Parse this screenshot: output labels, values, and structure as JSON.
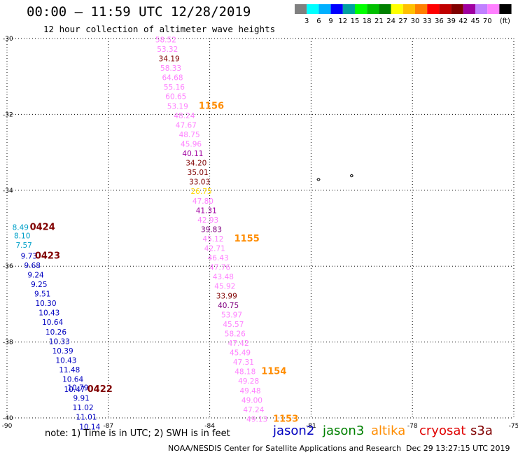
{
  "header": {
    "title": "00:00 – 11:59 UTC 12/28/2019",
    "subtitle": "12 hour collection of altimeter wave heights"
  },
  "colorbar": {
    "colors": [
      "#808080",
      "#00ffff",
      "#00b0ff",
      "#0000ff",
      "#00a0a0",
      "#00ff00",
      "#00c000",
      "#008000",
      "#ffff00",
      "#ffc000",
      "#ff8000",
      "#ff0000",
      "#c00000",
      "#800000",
      "#a000a0",
      "#c080ff",
      "#ff80ff",
      "#000000"
    ],
    "labels": [
      "3",
      "6",
      "9",
      "12",
      "15",
      "18",
      "21",
      "24",
      "27",
      "30",
      "33",
      "36",
      "39",
      "42",
      "45",
      "70"
    ],
    "unit": "(ft)"
  },
  "axes": {
    "lat_min": -40,
    "lat_max": -30,
    "lon_min": -90,
    "lon_max": -75,
    "lat_ticks": [
      {
        "value": -30,
        "label": "-30"
      },
      {
        "value": -32,
        "label": "-32"
      },
      {
        "value": -34,
        "label": "-34"
      },
      {
        "value": -36,
        "label": "-36"
      },
      {
        "value": -38,
        "label": "-38"
      },
      {
        "value": -40,
        "label": "-40"
      }
    ],
    "lon_ticks": [
      {
        "value": -90,
        "label": "-90"
      },
      {
        "value": -87,
        "label": "-87"
      },
      {
        "value": -84,
        "label": "-84"
      },
      {
        "value": -81,
        "label": "-81"
      },
      {
        "value": -78,
        "label": "-78"
      },
      {
        "value": -75,
        "label": "-75"
      }
    ]
  },
  "tracks": [
    {
      "satellite": "jason2",
      "points": [
        {
          "lat": -35.05,
          "lon": -89.6,
          "value": "8.49",
          "color": "#00a0c8"
        },
        {
          "lat": -35.27,
          "lon": -89.55,
          "value": "8.10",
          "color": "#00a0c8"
        },
        {
          "lat": -35.52,
          "lon": -89.5,
          "value": "7.57",
          "color": "#00a0c8"
        },
        {
          "lat": -35.8,
          "lon": -89.35,
          "value": "9.73",
          "color": "#0000c0"
        },
        {
          "lat": -36.05,
          "lon": -89.25,
          "value": "9.68",
          "color": "#0000c0"
        },
        {
          "lat": -36.3,
          "lon": -89.15,
          "value": "9.24",
          "color": "#0000c0"
        },
        {
          "lat": -36.55,
          "lon": -89.05,
          "value": "9.25",
          "color": "#0000c0"
        },
        {
          "lat": -36.8,
          "lon": -88.95,
          "value": "9.51",
          "color": "#0000c0"
        },
        {
          "lat": -37.05,
          "lon": -88.85,
          "value": "10.30",
          "color": "#0000c0"
        },
        {
          "lat": -37.3,
          "lon": -88.75,
          "value": "10.43",
          "color": "#0000c0"
        },
        {
          "lat": -37.55,
          "lon": -88.65,
          "value": "10.64",
          "color": "#0000c0"
        },
        {
          "lat": -37.8,
          "lon": -88.55,
          "value": "10.26",
          "color": "#0000c0"
        },
        {
          "lat": -38.05,
          "lon": -88.45,
          "value": "10.33",
          "color": "#0000c0"
        },
        {
          "lat": -38.3,
          "lon": -88.35,
          "value": "10.39",
          "color": "#0000c0"
        },
        {
          "lat": -38.55,
          "lon": -88.25,
          "value": "10.43",
          "color": "#0000c0"
        },
        {
          "lat": -38.8,
          "lon": -88.15,
          "value": "11.48",
          "color": "#0000c0"
        },
        {
          "lat": -39.05,
          "lon": -88.05,
          "value": "10.64",
          "color": "#0000c0"
        },
        {
          "lat": -39.27,
          "lon": -87.9,
          "value": "10.79",
          "color": "#0000c0"
        },
        {
          "lat": -39.32,
          "lon": -88.0,
          "value": "10.47",
          "color": "#0000c0"
        },
        {
          "lat": -39.55,
          "lon": -87.8,
          "value": "9.91",
          "color": "#0000c0"
        },
        {
          "lat": -39.8,
          "lon": -87.75,
          "value": "11.02",
          "color": "#0000c0"
        },
        {
          "lat": -40.05,
          "lon": -87.65,
          "value": "11.01",
          "color": "#0000c0"
        },
        {
          "lat": -40.3,
          "lon": -87.55,
          "value": "10.14",
          "color": "#0000c0"
        }
      ],
      "times": [
        {
          "lat": -35.05,
          "lon": -88.95,
          "label": "0424",
          "color": "#800000"
        },
        {
          "lat": -35.8,
          "lon": -88.8,
          "label": "0423",
          "color": "#800000"
        },
        {
          "lat": -39.32,
          "lon": -87.25,
          "label": "0422",
          "color": "#800000"
        }
      ]
    },
    {
      "satellite": "altika",
      "points": [
        {
          "lat": -30.1,
          "lon": -85.3,
          "value": "58.52",
          "color": "#ff80ff"
        },
        {
          "lat": -30.35,
          "lon": -85.25,
          "value": "53.32",
          "color": "#ff80ff"
        },
        {
          "lat": -30.6,
          "lon": -85.2,
          "value": "34.19",
          "color": "#800000"
        },
        {
          "lat": -30.85,
          "lon": -85.15,
          "value": "58.33",
          "color": "#ff80ff"
        },
        {
          "lat": -31.1,
          "lon": -85.1,
          "value": "64.68",
          "color": "#ff80ff"
        },
        {
          "lat": -31.35,
          "lon": -85.05,
          "value": "55.16",
          "color": "#ff80ff"
        },
        {
          "lat": -31.6,
          "lon": -85.0,
          "value": "60.65",
          "color": "#ff80ff"
        },
        {
          "lat": -31.85,
          "lon": -84.95,
          "value": "53.19",
          "color": "#ff80ff"
        },
        {
          "lat": -32.1,
          "lon": -84.75,
          "value": "48.24",
          "color": "#ff80ff"
        },
        {
          "lat": -32.35,
          "lon": -84.7,
          "value": "47.67",
          "color": "#ff80ff"
        },
        {
          "lat": -32.6,
          "lon": -84.6,
          "value": "48.75",
          "color": "#ff80ff"
        },
        {
          "lat": -32.85,
          "lon": -84.55,
          "value": "45.96",
          "color": "#ff80ff"
        },
        {
          "lat": -33.1,
          "lon": -84.5,
          "value": "40.11",
          "color": "#a000a0"
        },
        {
          "lat": -33.35,
          "lon": -84.4,
          "value": "34.20",
          "color": "#800000"
        },
        {
          "lat": -33.6,
          "lon": -84.35,
          "value": "35.01",
          "color": "#800000"
        },
        {
          "lat": -33.85,
          "lon": -84.3,
          "value": "33.03",
          "color": "#800000"
        },
        {
          "lat": -34.1,
          "lon": -84.25,
          "value": "26.75",
          "color": "#ffd700"
        },
        {
          "lat": -34.35,
          "lon": -84.2,
          "value": "47.80",
          "color": "#ff80ff"
        },
        {
          "lat": -34.6,
          "lon": -84.1,
          "value": "41.31",
          "color": "#a000a0"
        },
        {
          "lat": -34.85,
          "lon": -84.05,
          "value": "42.93",
          "color": "#ff80ff"
        },
        {
          "lat": -35.1,
          "lon": -83.95,
          "value": "39.83",
          "color": "#800080"
        },
        {
          "lat": -35.35,
          "lon": -83.9,
          "value": "45.12",
          "color": "#ff80ff"
        },
        {
          "lat": -35.6,
          "lon": -83.85,
          "value": "42.71",
          "color": "#ff80ff"
        },
        {
          "lat": -35.85,
          "lon": -83.75,
          "value": "46.43",
          "color": "#ff80ff"
        },
        {
          "lat": -36.1,
          "lon": -83.7,
          "value": "47.76",
          "color": "#ff80ff"
        },
        {
          "lat": -36.35,
          "lon": -83.6,
          "value": "43.48",
          "color": "#ff80ff"
        },
        {
          "lat": -36.6,
          "lon": -83.55,
          "value": "45.92",
          "color": "#ff80ff"
        },
        {
          "lat": -36.85,
          "lon": -83.5,
          "value": "33.99",
          "color": "#800000"
        },
        {
          "lat": -37.1,
          "lon": -83.45,
          "value": "40.75",
          "color": "#800080"
        },
        {
          "lat": -37.35,
          "lon": -83.35,
          "value": "53.97",
          "color": "#ff80ff"
        },
        {
          "lat": -37.6,
          "lon": -83.3,
          "value": "45.57",
          "color": "#ff80ff"
        },
        {
          "lat": -37.85,
          "lon": -83.25,
          "value": "58.26",
          "color": "#ff80ff"
        },
        {
          "lat": -38.1,
          "lon": -83.15,
          "value": "47.42",
          "color": "#ff80ff"
        },
        {
          "lat": -38.35,
          "lon": -83.1,
          "value": "45.49",
          "color": "#ff80ff"
        },
        {
          "lat": -38.6,
          "lon": -83.0,
          "value": "47.31",
          "color": "#ff80ff"
        },
        {
          "lat": -38.85,
          "lon": -82.95,
          "value": "48.18",
          "color": "#ff80ff"
        },
        {
          "lat": -39.1,
          "lon": -82.85,
          "value": "49.28",
          "color": "#ff80ff"
        },
        {
          "lat": -39.35,
          "lon": -82.8,
          "value": "49.48",
          "color": "#ff80ff"
        },
        {
          "lat": -39.6,
          "lon": -82.75,
          "value": "49.00",
          "color": "#ff80ff"
        },
        {
          "lat": -39.85,
          "lon": -82.7,
          "value": "47.24",
          "color": "#ff80ff"
        },
        {
          "lat": -40.1,
          "lon": -82.6,
          "value": "49.13",
          "color": "#ff80ff"
        }
      ],
      "times": [
        {
          "lat": -31.85,
          "lon": -83.95,
          "label": "1156",
          "color": "#ff8c00"
        },
        {
          "lat": -35.35,
          "lon": -82.9,
          "label": "1155",
          "color": "#ff8c00"
        },
        {
          "lat": -38.85,
          "lon": -82.1,
          "label": "1154",
          "color": "#ff8c00"
        },
        {
          "lat": -40.1,
          "lon": -81.75,
          "label": "1153",
          "color": "#ff8c00"
        }
      ]
    }
  ],
  "islands": [
    {
      "name": "island-1",
      "lat": -33.72,
      "lon": -80.78
    },
    {
      "name": "island-2",
      "lat": -33.62,
      "lon": -79.8
    }
  ],
  "note": "note:  1) Time is in UTC;  2) SWH is in feet",
  "legend": [
    {
      "label": "jason2",
      "color": "#0000c0"
    },
    {
      "label": "jason3",
      "color": "#008000"
    },
    {
      "label": "altika",
      "color": "#ff8c00"
    },
    {
      "label": "cryosat",
      "color": "#e00000"
    },
    {
      "label": "s3a",
      "color": "#800000"
    }
  ],
  "footer": {
    "credit": "NOAA/NESDIS Center for Satellite Applications and Research",
    "timestamp": "Dec 29 13:27:15 UTC 2019"
  }
}
